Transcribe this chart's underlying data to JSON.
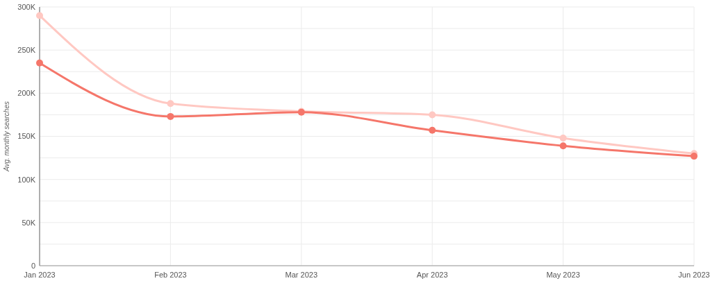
{
  "chart_data": {
    "type": "line",
    "ylabel": "Avg. monthly searches",
    "categories": [
      "Jan 2023",
      "Feb 2023",
      "Mar 2023",
      "Apr 2023",
      "May 2023",
      "Jun 2023"
    ],
    "series": [
      {
        "color": "#ffc8c2",
        "values": [
          290000,
          188000,
          179000,
          175000,
          148000,
          130000
        ]
      },
      {
        "color": "#f5766a",
        "values": [
          235000,
          173000,
          178000,
          157000,
          139000,
          127000
        ]
      }
    ],
    "ylim": [
      0,
      300000
    ],
    "yticks": [
      {
        "value": 0,
        "label": "0"
      },
      {
        "value": 25000,
        "label": null
      },
      {
        "value": 50000,
        "label": "50K"
      },
      {
        "value": 75000,
        "label": null
      },
      {
        "value": 100000,
        "label": "100K"
      },
      {
        "value": 125000,
        "label": null
      },
      {
        "value": 150000,
        "label": "150K"
      },
      {
        "value": 175000,
        "label": null
      },
      {
        "value": 200000,
        "label": "200K"
      },
      {
        "value": 225000,
        "label": null
      },
      {
        "value": 250000,
        "label": "250K"
      },
      {
        "value": 275000,
        "label": null
      },
      {
        "value": 300000,
        "label": "300K"
      }
    ],
    "grid": true,
    "marker": "circle"
  }
}
